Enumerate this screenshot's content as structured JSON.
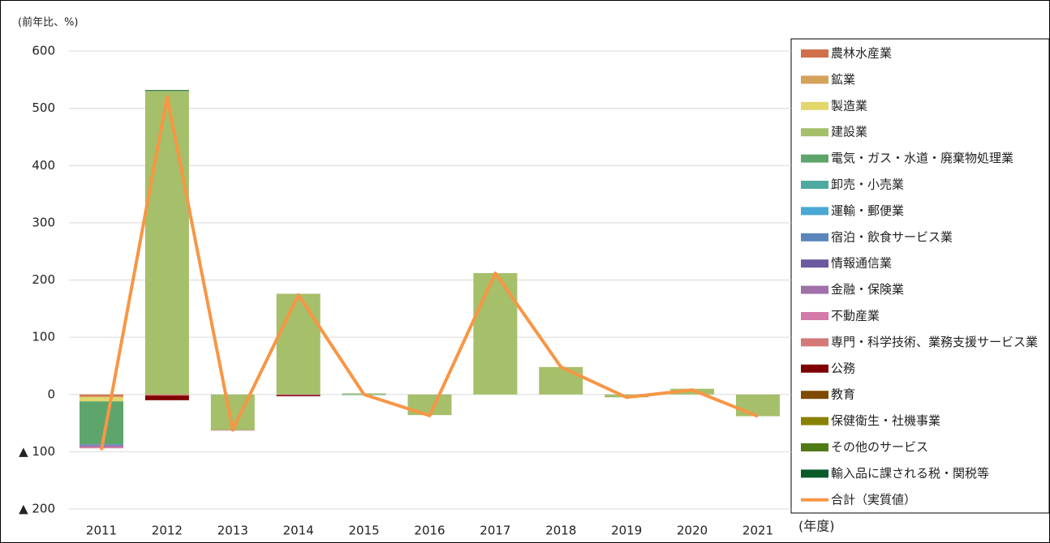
{
  "chart_data": {
    "type": "bar",
    "stacked": true,
    "y_label": "(前年比、%)",
    "x_label": "(年度)",
    "categories": [
      "2011",
      "2012",
      "2013",
      "2014",
      "2015",
      "2016",
      "2017",
      "2018",
      "2019",
      "2020",
      "2021"
    ],
    "ylim": [
      -200,
      600
    ],
    "yticks": [
      {
        "value": -200,
        "label": "▲ 200"
      },
      {
        "value": -100,
        "label": "▲ 100"
      },
      0,
      100,
      200,
      300,
      400,
      500,
      600
    ],
    "grid": true,
    "legend": "right",
    "series": [
      {
        "name": "農林水産業",
        "color": "#d0704a",
        "values": [
          -3,
          0,
          0,
          0,
          0,
          0,
          0,
          0,
          0,
          0,
          0
        ]
      },
      {
        "name": "鉱業",
        "color": "#d4a35b",
        "values": [
          -2,
          0,
          0,
          0,
          0,
          0,
          0,
          0,
          0,
          0,
          0
        ]
      },
      {
        "name": "製造業",
        "color": "#e2d66d",
        "values": [
          -7,
          0,
          0,
          0,
          0,
          0,
          0,
          0,
          0,
          0,
          0
        ]
      },
      {
        "name": "建設業",
        "color": "#a6bf6a",
        "values": [
          0,
          530,
          -62,
          176,
          2,
          -36,
          212,
          48,
          -5,
          10,
          -38
        ]
      },
      {
        "name": "電気・ガス・水道・廃棄物処理業",
        "color": "#5ea56c",
        "values": [
          -75,
          1,
          0,
          0,
          0,
          0,
          0,
          0,
          0,
          0,
          0
        ]
      },
      {
        "name": "卸売・小売業",
        "color": "#4eaaa0",
        "values": [
          0,
          0,
          0,
          0,
          -1,
          0,
          0,
          0,
          0,
          0,
          0
        ]
      },
      {
        "name": "運輸・郵便業",
        "color": "#4aa8d4",
        "values": [
          0,
          0,
          0,
          0,
          0,
          0,
          0,
          0,
          0,
          0,
          0
        ]
      },
      {
        "name": "宿泊・飲食サービス業",
        "color": "#5a86bc",
        "values": [
          -2,
          0,
          0,
          0,
          0,
          0,
          0,
          0,
          0,
          0,
          0
        ]
      },
      {
        "name": "情報通信業",
        "color": "#6a5aa0",
        "values": [
          0,
          0,
          0,
          0,
          0,
          0,
          0,
          0,
          0,
          0,
          0
        ]
      },
      {
        "name": "金融・保険業",
        "color": "#a070a8",
        "values": [
          -3,
          0,
          0,
          0,
          0,
          0,
          0,
          0,
          0,
          0,
          0
        ]
      },
      {
        "name": "不動産業",
        "color": "#d47aa8",
        "values": [
          -1,
          0,
          0,
          -1,
          0,
          0,
          0,
          0,
          0,
          0,
          0
        ]
      },
      {
        "name": "専門・科学技術、業務支援サービス業",
        "color": "#d47878",
        "values": [
          -1,
          -2,
          -1,
          0,
          0,
          0,
          0,
          0,
          0,
          0,
          0
        ]
      },
      {
        "name": "公務",
        "color": "#7f0000",
        "values": [
          0,
          -8,
          0,
          -2,
          0,
          0,
          0,
          0,
          0,
          0,
          0
        ]
      },
      {
        "name": "教育",
        "color": "#7f4a00",
        "values": [
          0,
          0,
          0,
          0,
          0,
          0,
          0,
          0,
          0,
          0,
          0
        ]
      },
      {
        "name": "保健衛生・社機事業",
        "color": "#8a8000",
        "values": [
          0,
          0,
          0,
          0,
          0,
          0,
          0,
          0,
          0,
          0,
          0
        ]
      },
      {
        "name": "その他のサービス",
        "color": "#4f7a14",
        "values": [
          0,
          0,
          0,
          0,
          0,
          0,
          0,
          0,
          0,
          0,
          0
        ]
      },
      {
        "name": "輸入品に課される税・関税等",
        "color": "#0a5a28",
        "values": [
          0,
          1,
          0,
          0,
          0,
          0,
          0,
          0,
          0,
          0,
          0
        ]
      },
      {
        "name": "合計（実質値）",
        "color": "#f79646",
        "kind": "line",
        "values": [
          -97,
          520,
          -62,
          174,
          0,
          -37,
          212,
          48,
          -5,
          8,
          -38
        ]
      }
    ]
  }
}
